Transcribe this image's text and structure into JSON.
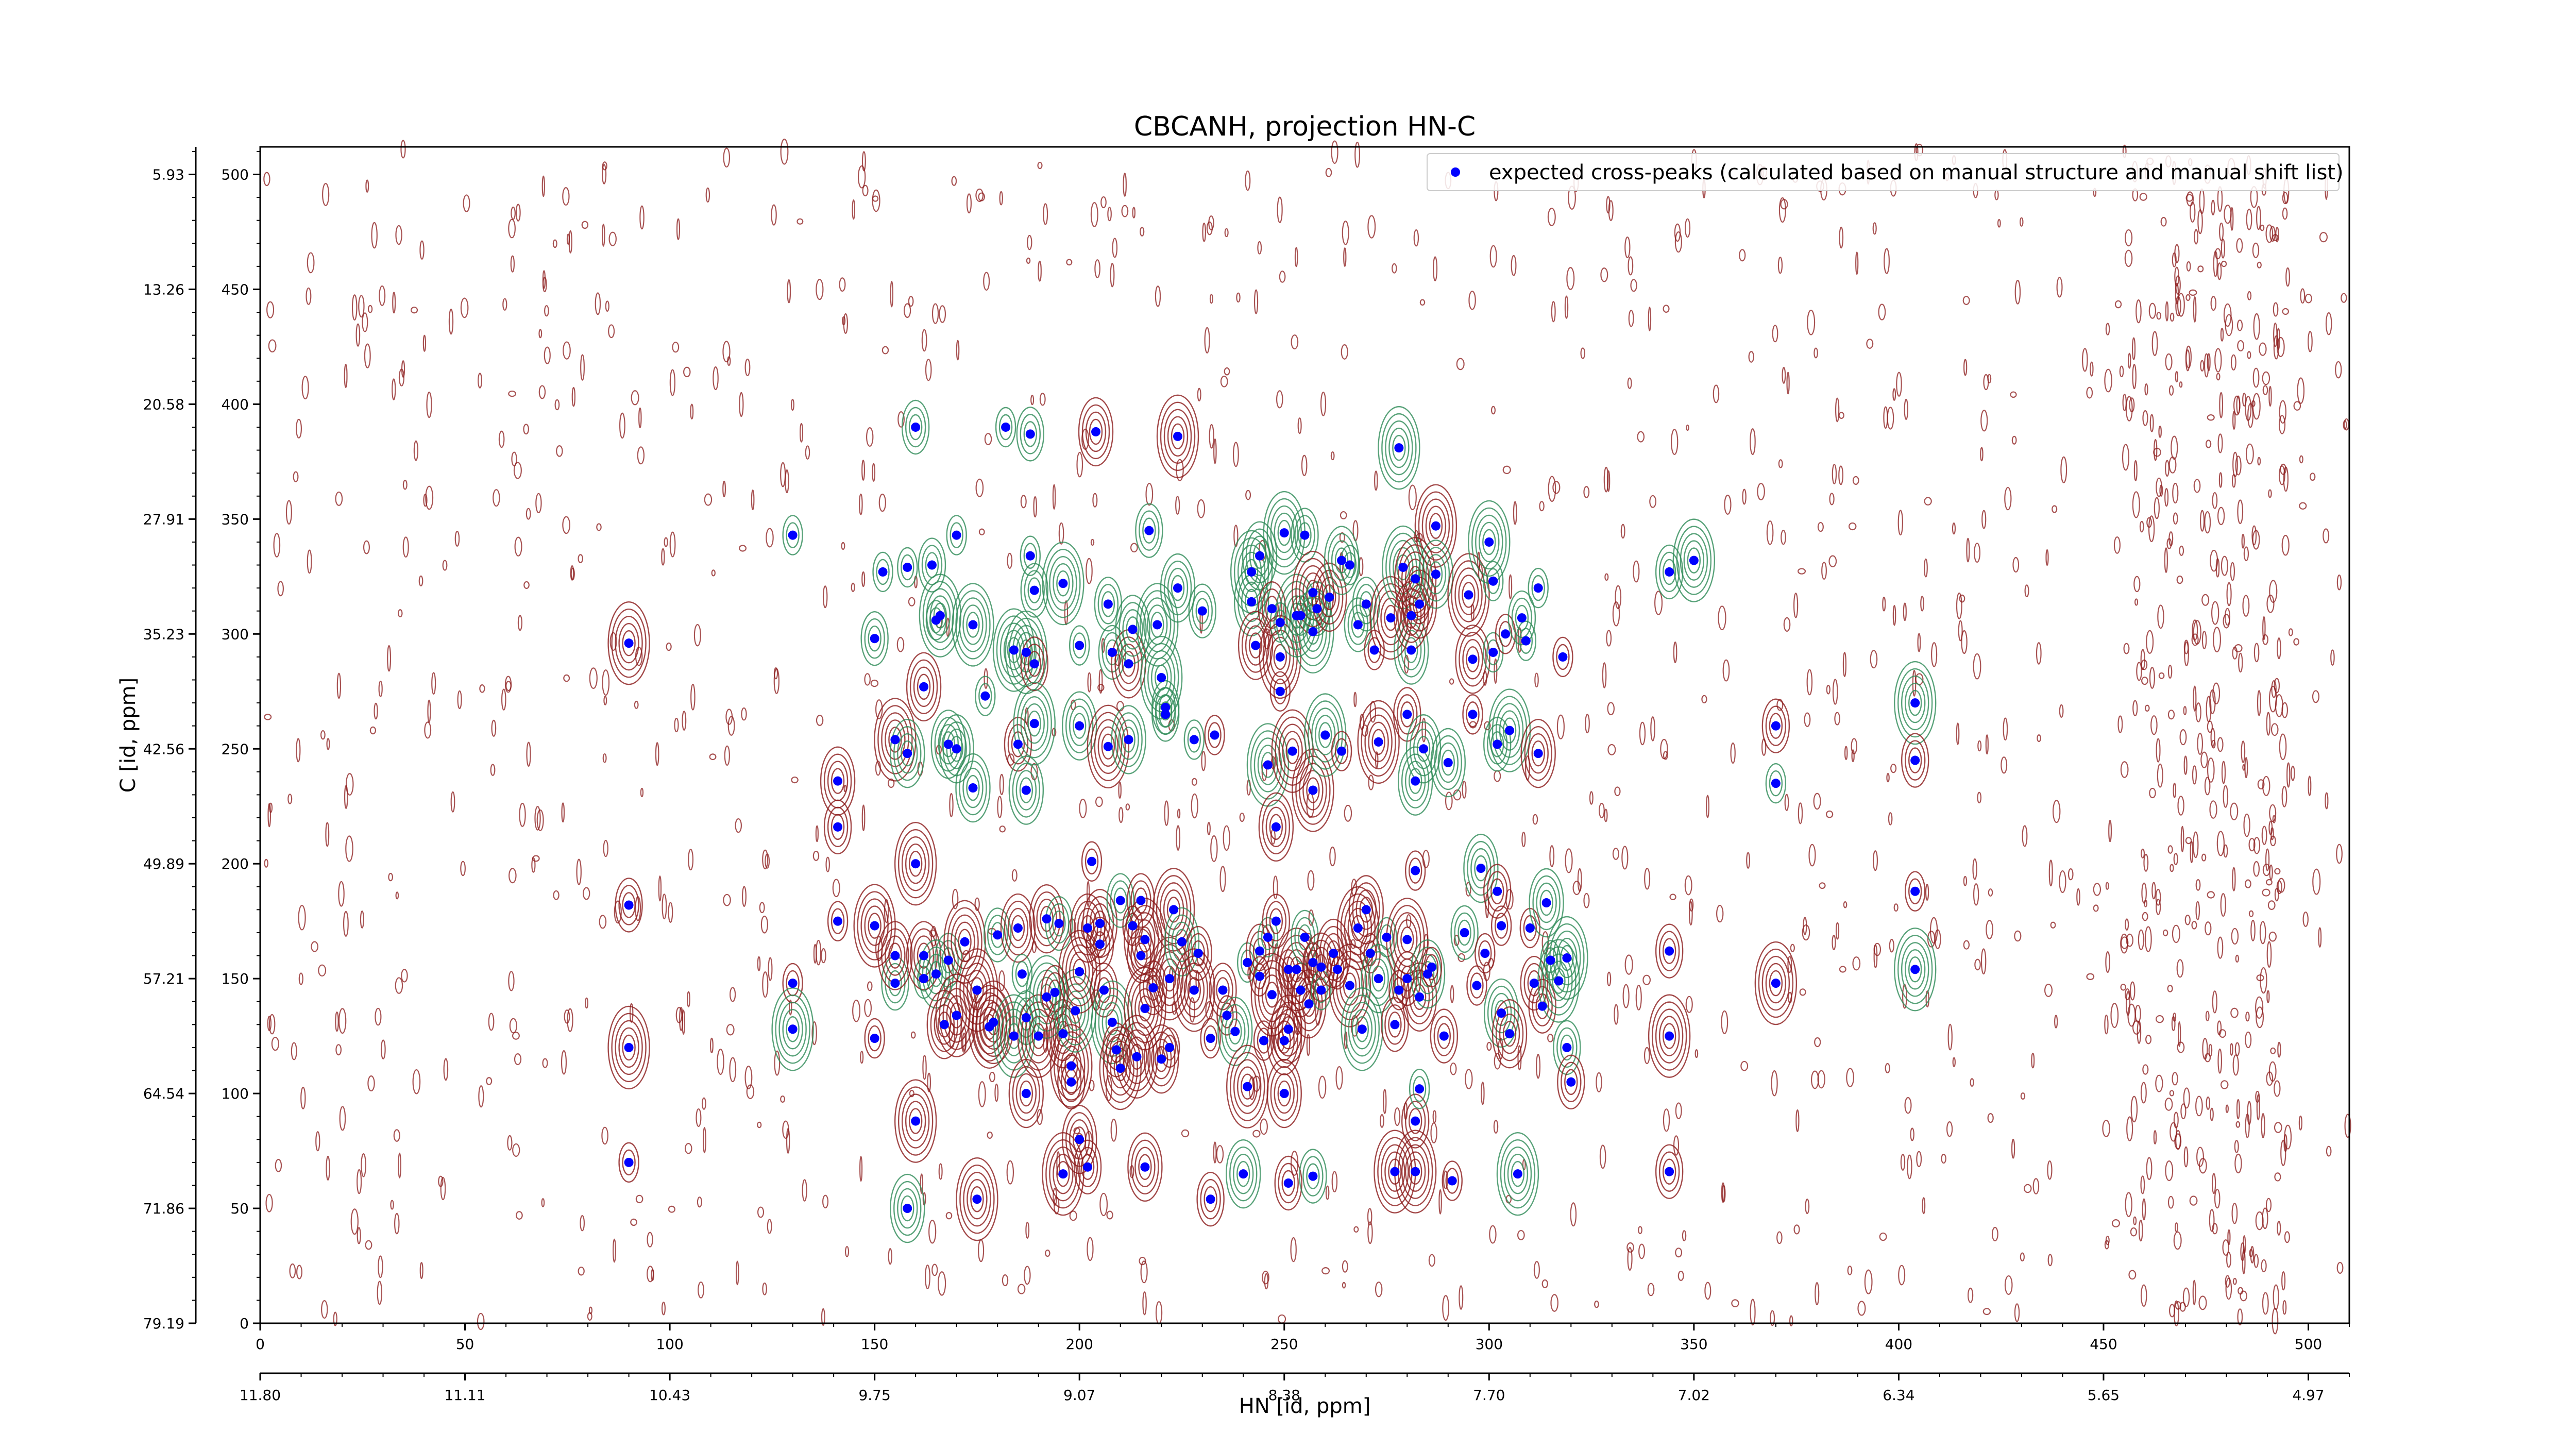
{
  "chart_data": {
    "type": "scatter",
    "title": "CBCANH, projection HN-C",
    "xlabel": "HN [id, ppm]",
    "ylabel": "C [id, ppm]",
    "xlim": [
      0,
      510
    ],
    "ylim": [
      0,
      512
    ],
    "x_index_ticks": [
      0,
      50,
      100,
      150,
      200,
      250,
      300,
      350,
      400,
      450,
      500
    ],
    "x_index_tick_labels": [
      "0",
      "50",
      "100",
      "150",
      "200",
      "250",
      "300",
      "350",
      "400",
      "450",
      "500"
    ],
    "x_ppm_tick_labels": [
      "11.80",
      "11.11",
      "10.43",
      "9.75",
      "9.07",
      "8.38",
      "7.70",
      "7.02",
      "6.34",
      "5.65",
      "4.97"
    ],
    "y_index_ticks": [
      0,
      50,
      100,
      150,
      200,
      250,
      300,
      350,
      400,
      450,
      500
    ],
    "y_index_tick_labels": [
      "0",
      "50",
      "100",
      "150",
      "200",
      "250",
      "300",
      "350",
      "400",
      "450",
      "500"
    ],
    "y_ppm_tick_labels": [
      "79.19",
      "71.86",
      "64.54",
      "57.21",
      "49.89",
      "42.56",
      "35.23",
      "27.91",
      "20.58",
      "13.26",
      "5.93"
    ],
    "legend": {
      "placement": "top-right",
      "entries": [
        "expected cross-peaks (calculated based on manual structure and manual shift list)"
      ]
    },
    "colors": {
      "expected_marker": "#0000ff",
      "contour_positive": "#8b1a1a",
      "contour_negative": "#2e8b57"
    },
    "series": [
      {
        "name": "expected cross-peaks (calculated based on manual structure and manual shift list)",
        "points": [
          [
            90,
            296
          ],
          [
            90,
            182
          ],
          [
            90,
            120
          ],
          [
            90,
            70
          ],
          [
            130,
            343
          ],
          [
            130,
            148
          ],
          [
            130,
            128
          ],
          [
            141,
            236
          ],
          [
            141,
            216
          ],
          [
            141,
            175
          ],
          [
            150,
            298
          ],
          [
            150,
            124
          ],
          [
            150,
            173
          ],
          [
            152,
            327
          ],
          [
            155,
            254
          ],
          [
            155,
            148
          ],
          [
            155,
            160
          ],
          [
            158,
            329
          ],
          [
            158,
            248
          ],
          [
            158,
            50
          ],
          [
            160,
            390
          ],
          [
            160,
            200
          ],
          [
            160,
            88
          ],
          [
            162,
            277
          ],
          [
            162,
            150
          ],
          [
            162,
            160
          ],
          [
            164,
            330
          ],
          [
            165,
            306
          ],
          [
            165,
            152
          ],
          [
            166,
            308
          ],
          [
            167,
            130
          ],
          [
            168,
            252
          ],
          [
            168,
            158
          ],
          [
            170,
            343
          ],
          [
            170,
            250
          ],
          [
            170,
            134
          ],
          [
            172,
            166
          ],
          [
            174,
            304
          ],
          [
            174,
            233
          ],
          [
            175,
            145
          ],
          [
            175,
            54
          ],
          [
            177,
            273
          ],
          [
            178,
            129
          ],
          [
            179,
            131
          ],
          [
            180,
            169
          ],
          [
            182,
            390
          ],
          [
            184,
            293
          ],
          [
            184,
            125
          ],
          [
            185,
            172
          ],
          [
            185,
            252
          ],
          [
            186,
            152
          ],
          [
            187,
            133
          ],
          [
            187,
            292
          ],
          [
            187,
            232
          ],
          [
            187,
            100
          ],
          [
            188,
            387
          ],
          [
            188,
            334
          ],
          [
            189,
            319
          ],
          [
            189,
            287
          ],
          [
            189,
            261
          ],
          [
            190,
            125
          ],
          [
            192,
            176
          ],
          [
            192,
            142
          ],
          [
            194,
            144
          ],
          [
            195,
            174
          ],
          [
            196,
            126
          ],
          [
            196,
            322
          ],
          [
            196,
            65
          ],
          [
            198,
            105
          ],
          [
            198,
            112
          ],
          [
            199,
            136
          ],
          [
            200,
            153
          ],
          [
            200,
            260
          ],
          [
            200,
            295
          ],
          [
            200,
            80
          ],
          [
            202,
            172
          ],
          [
            202,
            68
          ],
          [
            203,
            201
          ],
          [
            204,
            388
          ],
          [
            205,
            174
          ],
          [
            205,
            165
          ],
          [
            206,
            145
          ],
          [
            207,
            251
          ],
          [
            207,
            313
          ],
          [
            208,
            131
          ],
          [
            208,
            292
          ],
          [
            209,
            119
          ],
          [
            210,
            184
          ],
          [
            210,
            111
          ],
          [
            212,
            254
          ],
          [
            212,
            287
          ],
          [
            213,
            302
          ],
          [
            213,
            173
          ],
          [
            214,
            116
          ],
          [
            215,
            160
          ],
          [
            215,
            184
          ],
          [
            216,
            167
          ],
          [
            216,
            137
          ],
          [
            216,
            68
          ],
          [
            217,
            345
          ],
          [
            218,
            146
          ],
          [
            219,
            304
          ],
          [
            220,
            281
          ],
          [
            220,
            115
          ],
          [
            221,
            268
          ],
          [
            221,
            265
          ],
          [
            222,
            150
          ],
          [
            222,
            120
          ],
          [
            223,
            180
          ],
          [
            224,
            386
          ],
          [
            224,
            320
          ],
          [
            225,
            166
          ],
          [
            228,
            254
          ],
          [
            228,
            145
          ],
          [
            229,
            161
          ],
          [
            230,
            310
          ],
          [
            232,
            124
          ],
          [
            232,
            54
          ],
          [
            233,
            256
          ],
          [
            235,
            145
          ],
          [
            236,
            134
          ],
          [
            238,
            127
          ],
          [
            240,
            65
          ],
          [
            241,
            157
          ],
          [
            241,
            103
          ],
          [
            242,
            327
          ],
          [
            242,
            314
          ],
          [
            243,
            295
          ],
          [
            244,
            334
          ],
          [
            244,
            162
          ],
          [
            244,
            151
          ],
          [
            245,
            123
          ],
          [
            246,
            243
          ],
          [
            246,
            168
          ],
          [
            247,
            311
          ],
          [
            247,
            143
          ],
          [
            248,
            216
          ],
          [
            248,
            175
          ],
          [
            249,
            305
          ],
          [
            249,
            290
          ],
          [
            249,
            275
          ],
          [
            250,
            344
          ],
          [
            250,
            123
          ],
          [
            250,
            100
          ],
          [
            251,
            154
          ],
          [
            251,
            128
          ],
          [
            251,
            61
          ],
          [
            252,
            249
          ],
          [
            253,
            308
          ],
          [
            253,
            154
          ],
          [
            254,
            308
          ],
          [
            254,
            145
          ],
          [
            255,
            343
          ],
          [
            255,
            168
          ],
          [
            256,
            139
          ],
          [
            257,
            318
          ],
          [
            257,
            301
          ],
          [
            257,
            232
          ],
          [
            257,
            157
          ],
          [
            257,
            64
          ],
          [
            258,
            311
          ],
          [
            259,
            155
          ],
          [
            259,
            145
          ],
          [
            260,
            256
          ],
          [
            261,
            316
          ],
          [
            262,
            161
          ],
          [
            263,
            154
          ],
          [
            264,
            332
          ],
          [
            264,
            249
          ],
          [
            266,
            330
          ],
          [
            266,
            147
          ],
          [
            268,
            304
          ],
          [
            268,
            172
          ],
          [
            269,
            128
          ],
          [
            270,
            313
          ],
          [
            270,
            180
          ],
          [
            271,
            161
          ],
          [
            272,
            293
          ],
          [
            273,
            150
          ],
          [
            273,
            253
          ],
          [
            275,
            168
          ],
          [
            276,
            307
          ],
          [
            277,
            130
          ],
          [
            277,
            66
          ],
          [
            278,
            145
          ],
          [
            278,
            381
          ],
          [
            279,
            329
          ],
          [
            280,
            167
          ],
          [
            280,
            265
          ],
          [
            280,
            150
          ],
          [
            281,
            293
          ],
          [
            281,
            308
          ],
          [
            282,
            324
          ],
          [
            282,
            236
          ],
          [
            282,
            197
          ],
          [
            282,
            88
          ],
          [
            282,
            66
          ],
          [
            283,
            313
          ],
          [
            283,
            142
          ],
          [
            283,
            102
          ],
          [
            284,
            250
          ],
          [
            285,
            152
          ],
          [
            286,
            155
          ],
          [
            287,
            347
          ],
          [
            287,
            326
          ],
          [
            289,
            125
          ],
          [
            290,
            244
          ],
          [
            291,
            62
          ],
          [
            294,
            170
          ],
          [
            295,
            317
          ],
          [
            296,
            289
          ],
          [
            296,
            265
          ],
          [
            297,
            147
          ],
          [
            298,
            198
          ],
          [
            299,
            161
          ],
          [
            300,
            340
          ],
          [
            301,
            323
          ],
          [
            301,
            292
          ],
          [
            302,
            252
          ],
          [
            302,
            188
          ],
          [
            303,
            173
          ],
          [
            303,
            135
          ],
          [
            304,
            300
          ],
          [
            305,
            258
          ],
          [
            305,
            126
          ],
          [
            307,
            65
          ],
          [
            308,
            307
          ],
          [
            309,
            297
          ],
          [
            310,
            172
          ],
          [
            311,
            148
          ],
          [
            312,
            320
          ],
          [
            312,
            248
          ],
          [
            313,
            138
          ],
          [
            314,
            183
          ],
          [
            315,
            158
          ],
          [
            317,
            149
          ],
          [
            318,
            290
          ],
          [
            319,
            159
          ],
          [
            319,
            120
          ],
          [
            320,
            105
          ],
          [
            344,
            327
          ],
          [
            344,
            162
          ],
          [
            344,
            66
          ],
          [
            344,
            125
          ],
          [
            350,
            332
          ],
          [
            370,
            260
          ],
          [
            370,
            235
          ],
          [
            370,
            148
          ],
          [
            404,
            270
          ],
          [
            404,
            245
          ],
          [
            404,
            188
          ],
          [
            404,
            154
          ]
        ]
      }
    ]
  }
}
